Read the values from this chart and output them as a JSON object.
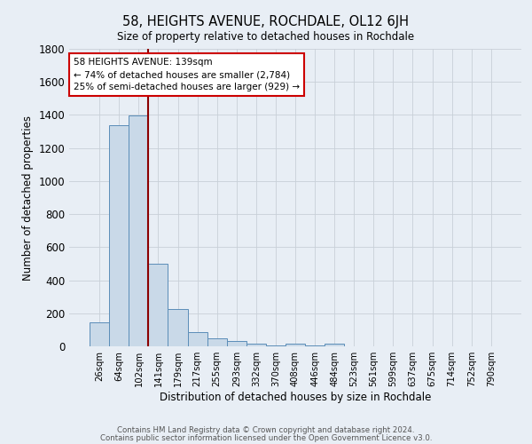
{
  "title": "58, HEIGHTS AVENUE, ROCHDALE, OL12 6JH",
  "subtitle": "Size of property relative to detached houses in Rochdale",
  "xlabel": "Distribution of detached houses by size in Rochdale",
  "ylabel": "Number of detached properties",
  "footnote1": "Contains HM Land Registry data © Crown copyright and database right 2024.",
  "footnote2": "Contains public sector information licensed under the Open Government Licence v3.0.",
  "bar_labels": [
    "26sqm",
    "64sqm",
    "102sqm",
    "141sqm",
    "179sqm",
    "217sqm",
    "255sqm",
    "293sqm",
    "332sqm",
    "370sqm",
    "408sqm",
    "446sqm",
    "484sqm",
    "523sqm",
    "561sqm",
    "599sqm",
    "637sqm",
    "675sqm",
    "714sqm",
    "752sqm",
    "790sqm"
  ],
  "bar_values": [
    145,
    1340,
    1395,
    500,
    225,
    85,
    50,
    30,
    18,
    5,
    15,
    5,
    18,
    0,
    0,
    0,
    0,
    0,
    0,
    0,
    0
  ],
  "bar_color": "#c9d9e8",
  "bar_edge_color": "#5b8db8",
  "grid_color": "#c8d0d8",
  "bg_color": "#e8eef5",
  "vline_color": "#8b0000",
  "vline_pos": 2.5,
  "annotation_text": "58 HEIGHTS AVENUE: 139sqm\n← 74% of detached houses are smaller (2,784)\n25% of semi-detached houses are larger (929) →",
  "annotation_box_color": "#ffffff",
  "annotation_box_edge": "#cc0000",
  "ylim": [
    0,
    1800
  ],
  "yticks": [
    0,
    200,
    400,
    600,
    800,
    1000,
    1200,
    1400,
    1600,
    1800
  ]
}
